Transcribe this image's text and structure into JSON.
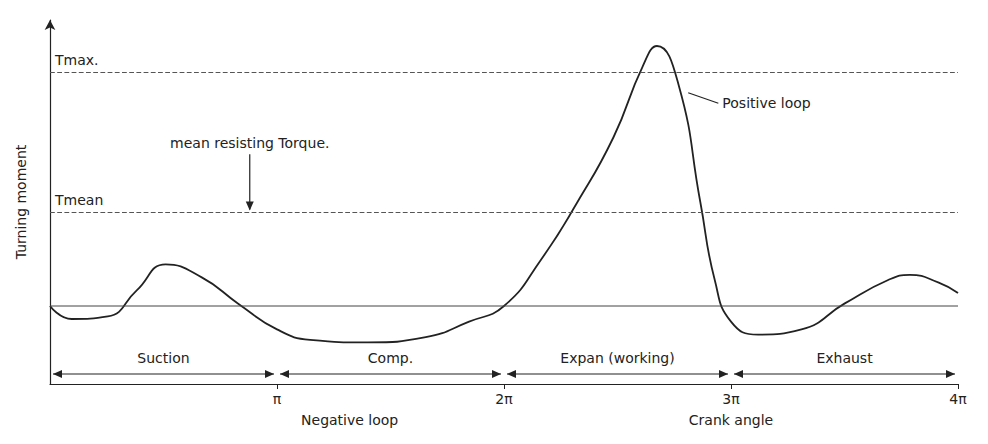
{
  "chart_data": {
    "type": "line",
    "x_label": "Crank angle",
    "y_label": "Turning moment",
    "color": "#222222",
    "x": [
      0,
      0.3,
      0.8,
      1.2,
      1.6,
      2.1,
      2.6,
      3.1416,
      3.6,
      4.4,
      5.2,
      5.8,
      6.2832,
      6.8,
      7.3,
      7.8,
      8.2,
      8.4,
      8.7,
      9.0,
      9.2,
      9.4248,
      9.8,
      10.4,
      11.0,
      11.6,
      11.9,
      12.3,
      12.5664
    ],
    "values": [
      0,
      -0.5,
      -0.4,
      0.6,
      1.6,
      1.1,
      0.1,
      -0.9,
      -1.3,
      -1.4,
      -1.2,
      -0.6,
      0,
      1.8,
      4,
      6.5,
      9.2,
      10,
      8.5,
      4,
      1,
      -0.6,
      -1.1,
      -0.9,
      0.1,
      1.0,
      1.2,
      0.9,
      0.5
    ],
    "xlim": [
      0,
      12.5664
    ],
    "xticks": [
      {
        "value": 3.1416,
        "label": "π"
      },
      {
        "value": 6.2832,
        "label": "2π"
      },
      {
        "value": 9.4248,
        "label": "3π"
      },
      {
        "value": 12.5664,
        "label": "4π"
      }
    ],
    "ylim": [
      -3,
      11
    ],
    "yticks": [],
    "tick_labels": "x",
    "grid": false,
    "reference_lines": [
      {
        "label": "Tmax.",
        "y": 9
      },
      {
        "label": "Tmean",
        "y": 3.6
      }
    ],
    "annotations": [
      "mean resisting Torque.",
      "Positive loop",
      "Negative loop"
    ],
    "strokes": [
      {
        "label": "Suction",
        "start": 0,
        "end": 3.1416
      },
      {
        "label": "Comp.",
        "start": 3.1416,
        "end": 6.2832
      },
      {
        "label": "Expan (working)",
        "start": 6.2832,
        "end": 9.4248
      },
      {
        "label": "Exhaust",
        "start": 9.4248,
        "end": 12.5664
      }
    ]
  }
}
